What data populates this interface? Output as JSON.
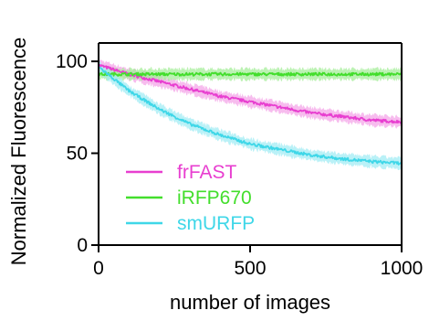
{
  "chart_data": {
    "type": "line",
    "xlabel": "number of images",
    "ylabel": "Normalized Fluorescence",
    "xlim": [
      0,
      1000
    ],
    "ylim": [
      0,
      110
    ],
    "x_ticks": [
      0,
      500,
      1000
    ],
    "x_tick_labels": [
      "0",
      "500",
      "1000"
    ],
    "y_ticks": [
      0,
      50,
      100
    ],
    "y_tick_labels": [
      "0",
      "50",
      "100"
    ],
    "grid": false,
    "legend_position": "bottom-left",
    "x": [
      0,
      100,
      200,
      300,
      400,
      500,
      600,
      700,
      800,
      900,
      1000
    ],
    "series": [
      {
        "name": "frFAST",
        "color": "#e83fd0",
        "band_color": "#f4a6e8",
        "values": [
          98,
          93,
          89,
          85,
          81,
          78,
          75,
          72,
          70,
          68,
          67
        ]
      },
      {
        "name": "iRFP670",
        "color": "#43de2c",
        "band_color": "#a6ee99",
        "values": [
          93,
          93,
          93,
          93,
          93,
          93,
          93,
          93,
          93,
          93,
          93
        ]
      },
      {
        "name": "smURFP",
        "color": "#3fd7e8",
        "band_color": "#a3ecf4",
        "values": [
          97,
          84,
          74,
          66,
          60,
          55,
          52,
          49,
          47,
          45.5,
          44.5
        ]
      }
    ]
  }
}
